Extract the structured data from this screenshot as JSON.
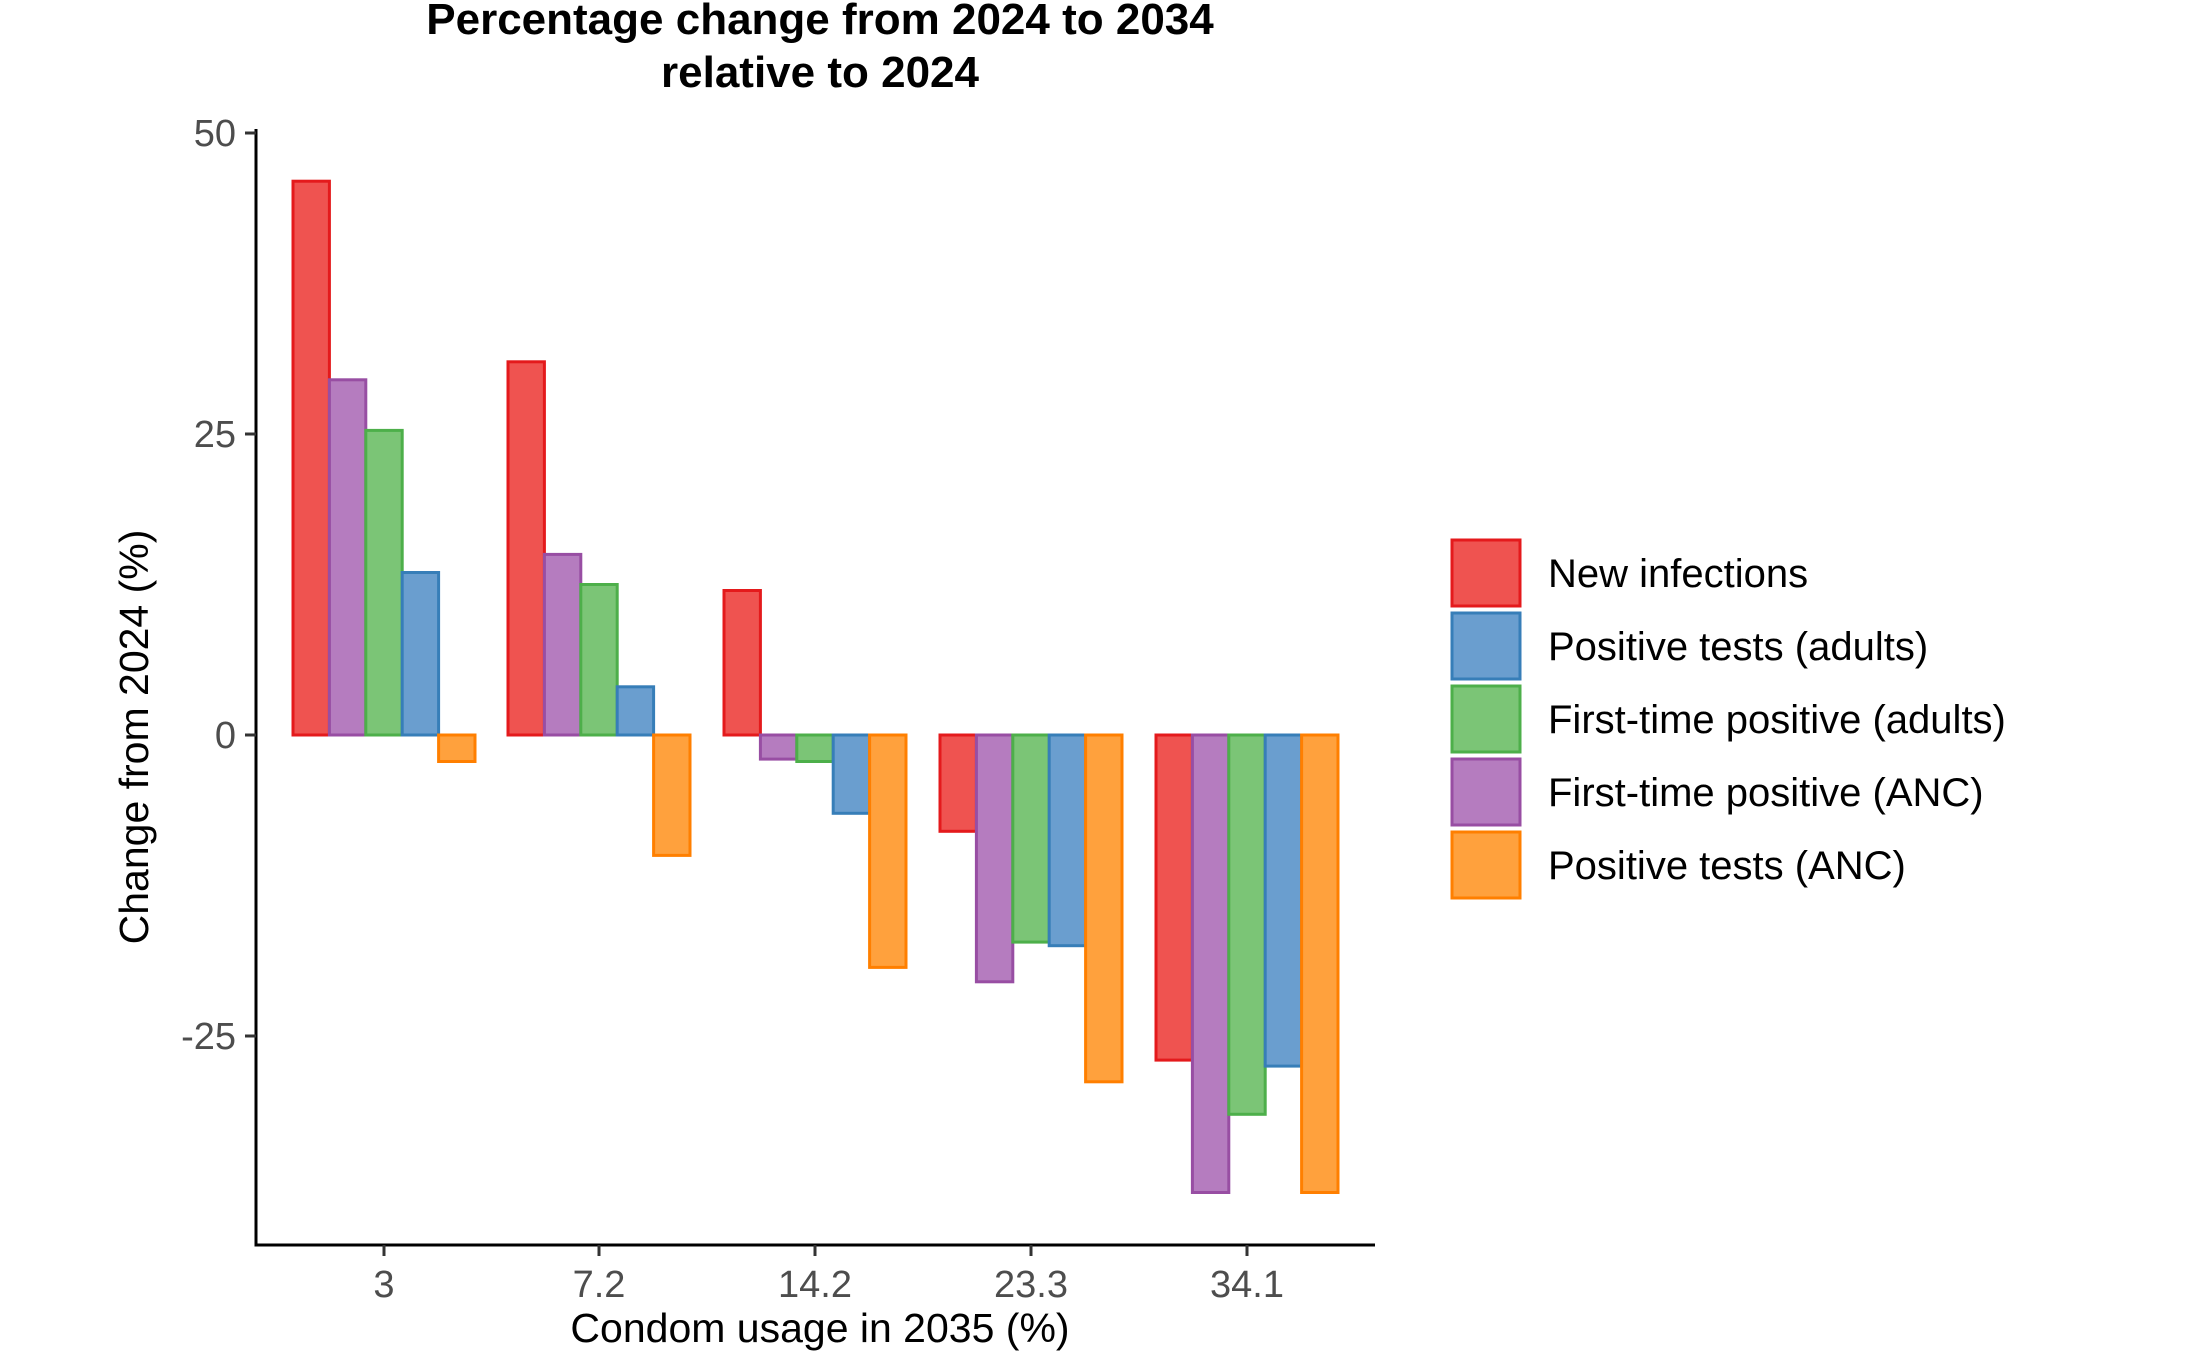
{
  "chart_data": {
    "type": "bar",
    "title": [
      "Percentage change from 2024 to 2034",
      "relative to 2024"
    ],
    "xlabel": "Condom usage in 2035 (%)",
    "ylabel": "Change from 2024 (%)",
    "categories": [
      "3",
      "7.2",
      "14.2",
      "23.3",
      "34.1"
    ],
    "ylim": [
      -42,
      50
    ],
    "yticks": [
      50,
      25,
      0,
      -25
    ],
    "ytick_labels": [
      "50",
      "25",
      "0",
      "-25"
    ],
    "grid": false,
    "legend_position": "right",
    "series": [
      {
        "name": "New infections",
        "color": "#EF5350",
        "stroke": "#E41A1C",
        "values": [
          46.0,
          31.0,
          12.0,
          -8.0,
          -27.0
        ]
      },
      {
        "name": "First-time positive (ANC)",
        "color": "#B57CBF",
        "stroke": "#984EA3",
        "values": [
          29.5,
          15.0,
          -2.0,
          -20.5,
          -38.0
        ]
      },
      {
        "name": "First-time positive (adults)",
        "color": "#7BC576",
        "stroke": "#4DAF4A",
        "values": [
          25.3,
          12.5,
          -2.2,
          -17.2,
          -31.5
        ]
      },
      {
        "name": "Positive tests (adults)",
        "color": "#6A9ECF",
        "stroke": "#377EB8",
        "values": [
          13.5,
          4.0,
          -6.5,
          -17.5,
          -27.5
        ]
      },
      {
        "name": "Positive tests (ANC)",
        "color": "#FFA13D",
        "stroke": "#FF7F00",
        "values": [
          -2.2,
          -10.0,
          -19.3,
          -28.8,
          -38.0
        ]
      }
    ],
    "legend_order": [
      "New infections",
      "Positive tests (adults)",
      "First-time positive (adults)",
      "First-time positive (ANC)",
      "Positive tests (ANC)"
    ]
  }
}
